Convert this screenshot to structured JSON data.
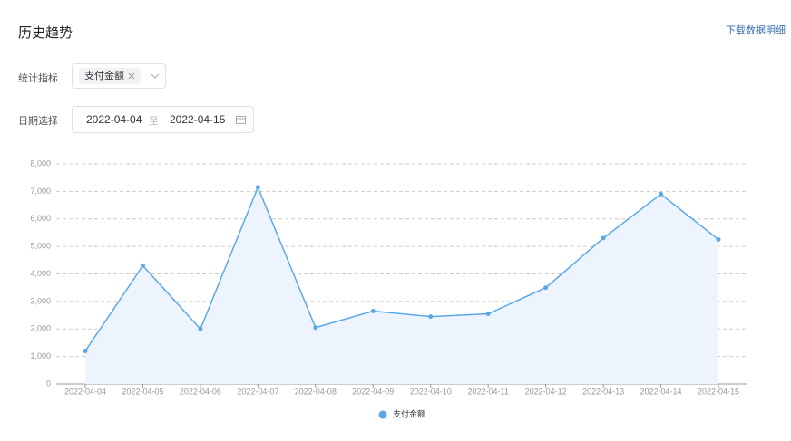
{
  "header": {
    "title": "历史趋势",
    "download_link": "下载数据明细"
  },
  "filters": {
    "metric_label": "统计指标",
    "metric_tag": "支付金额",
    "date_label": "日期选择",
    "date_start": "2022-04-04",
    "date_separator": "至",
    "date_end": "2022-04-15"
  },
  "chart_data": {
    "type": "line",
    "categories": [
      "2022-04-04",
      "2022-04-05",
      "2022-04-06",
      "2022-04-07",
      "2022-04-08",
      "2022-04-09",
      "2022-04-10",
      "2022-04-11",
      "2022-04-12",
      "2022-04-13",
      "2022-04-14",
      "2022-04-15"
    ],
    "series": [
      {
        "name": "支付金额",
        "color": "#5aa9e6",
        "values": [
          1200,
          4300,
          2000,
          7150,
          2050,
          2650,
          2450,
          2550,
          3500,
          5300,
          6900,
          5250
        ]
      }
    ],
    "ylim": [
      0,
      8000
    ],
    "yticks": [
      0,
      {
        "value": 1000,
        "label": "1,000"
      },
      {
        "value": 2000,
        "label": "2,000"
      },
      {
        "value": 3000,
        "label": "3,000"
      },
      {
        "value": 4000,
        "label": "4,000"
      },
      {
        "value": 5000,
        "label": "5,000"
      },
      {
        "value": 6000,
        "label": "6,000"
      },
      {
        "value": 7000,
        "label": "7,000"
      },
      {
        "value": 8000,
        "label": "8,000"
      }
    ],
    "grid": true,
    "area": true,
    "legend": "bottom"
  }
}
